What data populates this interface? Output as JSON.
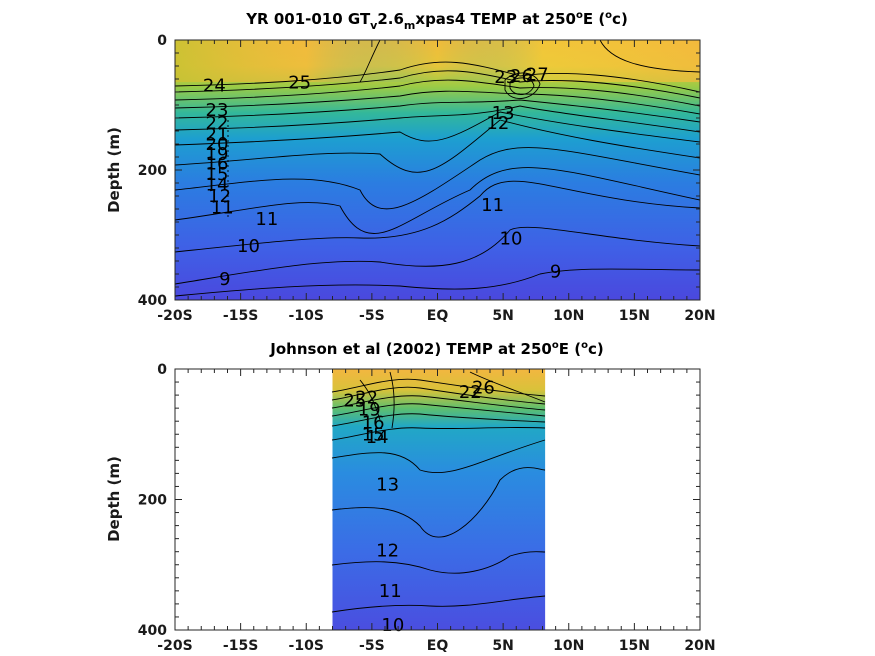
{
  "chart_data": [
    {
      "type": "contour",
      "title_main": "YR 001-010 GT",
      "title_sub1": "v",
      "title_mid": "2.6",
      "title_sub2": "m",
      "title_tail": "xpas4 TEMP at 250",
      "title_sup1": "o",
      "title_unitA": "E (",
      "title_sup2": "o",
      "title_unitB": "c)",
      "ylabel": "Depth (m)",
      "xlim": [
        -20,
        20
      ],
      "ylim": [
        0,
        400
      ],
      "xticks": [
        -20,
        -15,
        -10,
        -5,
        0,
        5,
        10,
        15,
        20
      ],
      "xticklabels": [
        "-20S",
        "-15S",
        "-10S",
        "-5S",
        "EQ",
        "5N",
        "10N",
        "15N",
        "20N"
      ],
      "yticks": [
        0,
        200,
        400
      ],
      "yticklabels": [
        "0",
        "200",
        "400"
      ],
      "data_lon_range": [
        -20,
        20
      ],
      "contour_labels": [
        {
          "x": -17.0,
          "y": 70,
          "text": "24"
        },
        {
          "x": -10.5,
          "y": 65,
          "text": "25"
        },
        {
          "x": -16.8,
          "y": 108,
          "text": "23"
        },
        {
          "x": -16.8,
          "y": 128,
          "text": "22"
        },
        {
          "x": -16.8,
          "y": 145,
          "text": "21"
        },
        {
          "x": -16.8,
          "y": 160,
          "text": "20"
        },
        {
          "x": -16.8,
          "y": 175,
          "text": "19"
        },
        {
          "x": -16.8,
          "y": 190,
          "text": "16"
        },
        {
          "x": -16.8,
          "y": 206,
          "text": "15"
        },
        {
          "x": -16.8,
          "y": 222,
          "text": "14"
        },
        {
          "x": -16.6,
          "y": 240,
          "text": "12"
        },
        {
          "x": -16.4,
          "y": 258,
          "text": "11"
        },
        {
          "x": -13.0,
          "y": 275,
          "text": "11"
        },
        {
          "x": -14.4,
          "y": 317,
          "text": "10"
        },
        {
          "x": -16.2,
          "y": 368,
          "text": "9"
        },
        {
          "x": 4.2,
          "y": 254,
          "text": "11"
        },
        {
          "x": 5.6,
          "y": 305,
          "text": "10"
        },
        {
          "x": 9.0,
          "y": 356,
          "text": "9"
        },
        {
          "x": 4.6,
          "y": 128,
          "text": "12"
        },
        {
          "x": 5.0,
          "y": 112,
          "text": "13"
        },
        {
          "x": 5.2,
          "y": 57,
          "text": "23"
        },
        {
          "x": 6.4,
          "y": 55,
          "text": "26"
        },
        {
          "x": 7.6,
          "y": 53,
          "text": "27"
        }
      ]
    },
    {
      "type": "contour",
      "title_main": "Johnson et al (2002) TEMP at 250",
      "title_sup1": "o",
      "title_unitA": "E (",
      "title_sup2": "o",
      "title_unitB": "c)",
      "ylabel": "Depth (m)",
      "xlim": [
        -20,
        20
      ],
      "ylim": [
        0,
        400
      ],
      "xticks": [
        -20,
        -15,
        -10,
        -5,
        0,
        5,
        10,
        15,
        20
      ],
      "xticklabels": [
        "-20S",
        "-15S",
        "-10S",
        "-5S",
        "EQ",
        "5N",
        "10N",
        "15N",
        "20N"
      ],
      "yticks": [
        0,
        200,
        400
      ],
      "yticklabels": [
        "0",
        "200",
        "400"
      ],
      "data_lon_range": [
        -8,
        8.2
      ],
      "contour_labels": [
        {
          "x": -6.3,
          "y": 48,
          "text": "25"
        },
        {
          "x": -5.4,
          "y": 44,
          "text": "22"
        },
        {
          "x": -5.2,
          "y": 62,
          "text": "19"
        },
        {
          "x": -4.9,
          "y": 82,
          "text": "16"
        },
        {
          "x": -4.9,
          "y": 100,
          "text": "15"
        },
        {
          "x": -4.6,
          "y": 104,
          "text": "14"
        },
        {
          "x": 2.5,
          "y": 35,
          "text": "22"
        },
        {
          "x": 3.5,
          "y": 28,
          "text": "26"
        },
        {
          "x": -3.8,
          "y": 177,
          "text": "13"
        },
        {
          "x": -3.8,
          "y": 278,
          "text": "12"
        },
        {
          "x": -3.6,
          "y": 340,
          "text": "11"
        },
        {
          "x": -3.4,
          "y": 392,
          "text": "10"
        }
      ]
    }
  ]
}
